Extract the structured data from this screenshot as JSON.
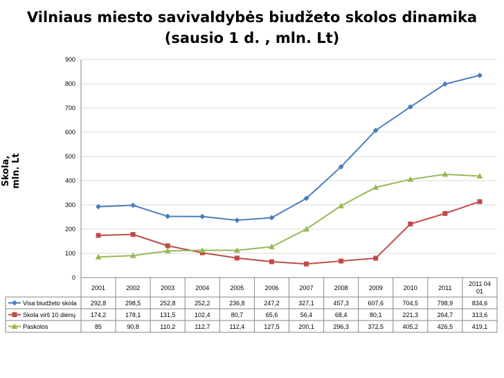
{
  "chart_data": {
    "type": "line",
    "title_line1": "Vilniaus miesto savivaldybės biudžeto skolos dinamika",
    "title_line2": "(sausio 1 d. , mln. Lt)",
    "ylabel": "Skola, mln. Lt",
    "ylim": [
      0,
      900
    ],
    "yticks": [
      "0",
      "100",
      "200",
      "300",
      "400",
      "500",
      "600",
      "700",
      "800",
      "900"
    ],
    "categories": [
      "2001",
      "2002",
      "2003",
      "2004",
      "2005",
      "2006",
      "2007",
      "2008",
      "2009",
      "2010",
      "2011",
      "2011 04 01"
    ],
    "series": [
      {
        "name": "Visa biudžeto skola",
        "color": "#4a7ebb",
        "marker": "diamond",
        "values": [
          292.8,
          298.5,
          252.8,
          252.2,
          236.8,
          247.2,
          327.1,
          457.3,
          607.6,
          704.5,
          798.9,
          834.6
        ],
        "labels": [
          "292,8",
          "298,5",
          "252,8",
          "252,2",
          "236,8",
          "247,2",
          "327,1",
          "457,3",
          "607,6",
          "704,5",
          "798,9",
          "834,6"
        ]
      },
      {
        "name": "Skola virš 10 dienų",
        "color": "#be4b48",
        "marker": "square",
        "values": [
          174.2,
          178.1,
          131.5,
          102.4,
          80.7,
          65.6,
          56.4,
          68.4,
          80.1,
          221.3,
          264.7,
          313.6
        ],
        "labels": [
          "174,2",
          "178,1",
          "131,5",
          "102,4",
          "80,7",
          "65,6",
          "56,4",
          "68,4",
          "80,1",
          "221,3",
          "264,7",
          "313,6"
        ]
      },
      {
        "name": "Paskolos",
        "color": "#98b954",
        "marker": "triangle",
        "values": [
          85,
          90.8,
          110.2,
          112.7,
          112.4,
          127.5,
          200.1,
          296.3,
          372.5,
          405.2,
          426.5,
          419.1
        ],
        "labels": [
          "85",
          "90,8",
          "110,2",
          "112,7",
          "112,4",
          "127,5",
          "200,1",
          "296,3",
          "372,5",
          "405,2",
          "426,5",
          "419,1"
        ]
      }
    ],
    "grid": true,
    "legend": "data-table-bottom"
  }
}
